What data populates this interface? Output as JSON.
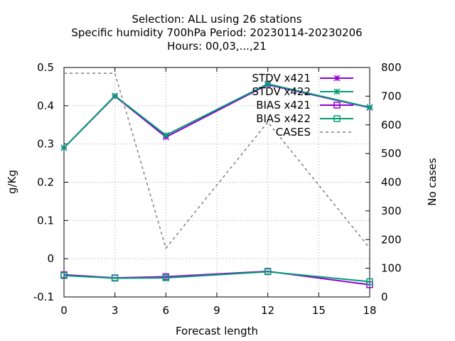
{
  "chart_data": {
    "type": "line",
    "title_lines": [
      "Selection: ALL using    26 stations",
      "Specific humidity 700hPa   Period: 20230114-20230206",
      "Hours:  00,03,...,21"
    ],
    "xlabel": "Forecast length",
    "ylabel": "g/Kg",
    "y2label": "No cases",
    "x": [
      0,
      3,
      6,
      12,
      18
    ],
    "xticks": [
      "0",
      "3",
      "6",
      "9",
      "12",
      "15",
      "18"
    ],
    "yticks": [
      "0.5",
      "0.4",
      "0.3",
      "0.2",
      "0.1",
      "0",
      "-0.1"
    ],
    "y2ticks": [
      "800",
      "700",
      "600",
      "500",
      "400",
      "300",
      "200",
      "100",
      "0"
    ],
    "xlim": [
      0,
      18
    ],
    "ylim": [
      -0.1,
      0.5
    ],
    "y2lim": [
      0,
      800
    ],
    "grid": true,
    "legend_position": "top-right",
    "series": [
      {
        "name": "STDV x421",
        "axis": "y",
        "marker": "x",
        "color": "#9400d3",
        "values": [
          0.29,
          0.425,
          0.318,
          0.455,
          0.395
        ]
      },
      {
        "name": "STDV x422",
        "axis": "y",
        "marker": "x",
        "color": "#009e73",
        "values": [
          0.29,
          0.426,
          0.323,
          0.457,
          0.396
        ]
      },
      {
        "name": "BIAS x421",
        "axis": "y",
        "marker": "square",
        "color": "#9400d3",
        "values": [
          -0.042,
          -0.05,
          -0.047,
          -0.033,
          -0.068
        ]
      },
      {
        "name": "BIAS x422",
        "axis": "y",
        "marker": "square",
        "color": "#009e73",
        "values": [
          -0.044,
          -0.051,
          -0.05,
          -0.034,
          -0.06
        ]
      },
      {
        "name": "CASES",
        "axis": "y2",
        "marker": "none",
        "color": "#808080",
        "dashed": true,
        "values": [
          780,
          780,
          170,
          610,
          170
        ]
      }
    ]
  }
}
